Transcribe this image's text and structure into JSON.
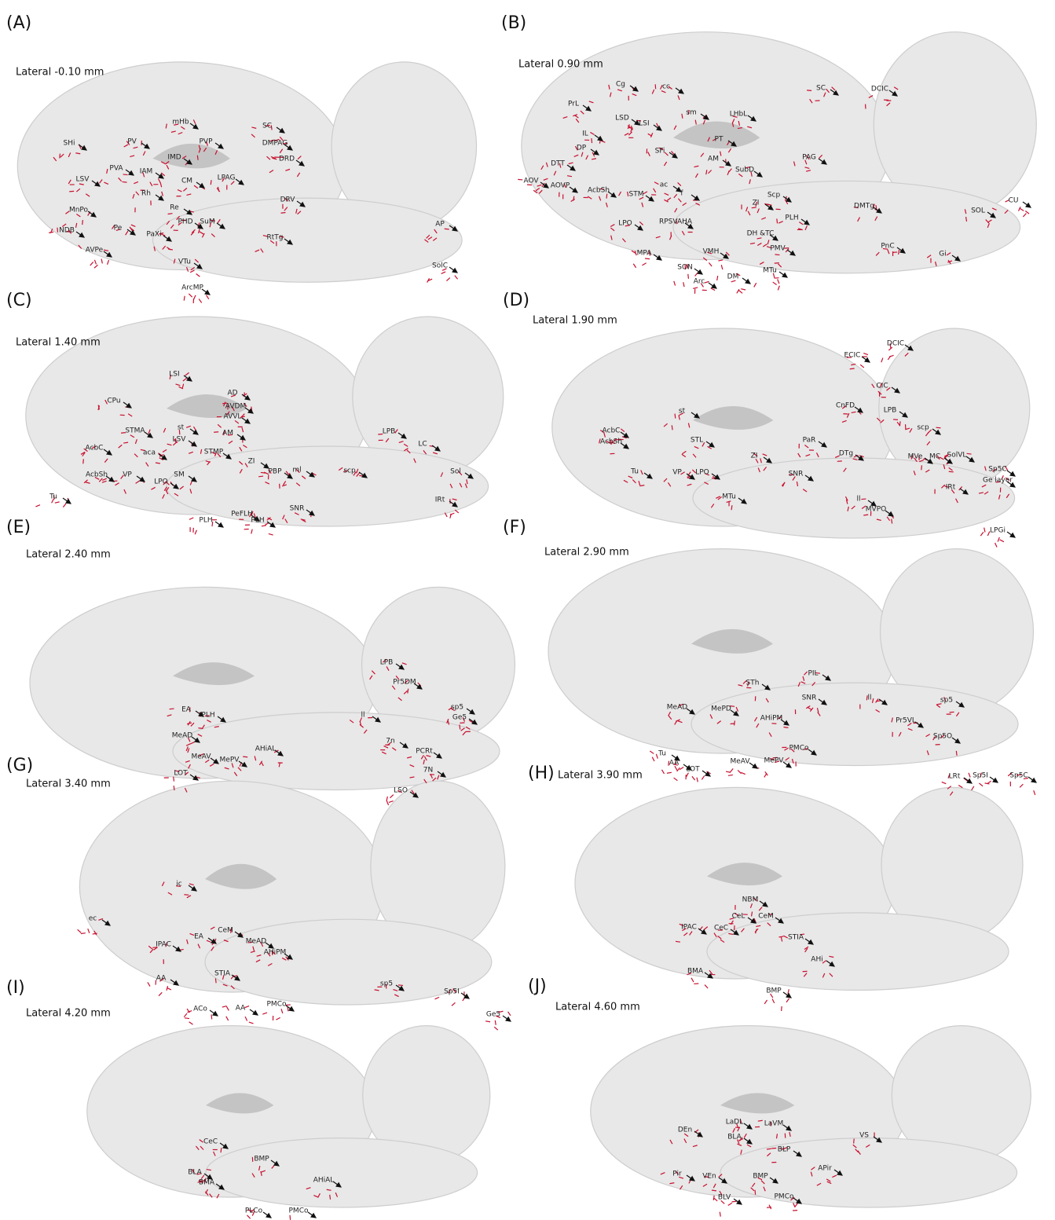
{
  "panels": [
    {
      "letter": "(A)",
      "section": "Lateral -0.10 mm",
      "labels": [
        "SHi",
        "PV",
        "mHb",
        "PVP",
        "IMD",
        "SC",
        "DMPAG",
        "PVA",
        "IAM",
        "CM",
        "LPAG",
        "DRD",
        "LSV",
        "Rh",
        "DRV",
        "Re",
        "MnPo",
        "Pe",
        "PHD",
        "SuM",
        "PaXi",
        "NDB",
        "AVPe",
        "RtTg",
        "AP",
        "SolC",
        "VTu",
        "ArcMP"
      ]
    },
    {
      "letter": "(B)",
      "section": "Lateral 0.90 mm",
      "labels": [
        "cc",
        "Cg",
        "PrL",
        "LSD",
        "sm",
        "LHbL",
        "SC",
        "DCIC",
        "LSI",
        "IL",
        "PT",
        "SFi",
        "DP",
        "AM",
        "PAG",
        "DTT",
        "SubD",
        "ac",
        "f",
        "AcbSh",
        "AOV",
        "AOVP",
        "STM",
        "Scp",
        "ZI",
        "DMTg",
        "SOL",
        "CU",
        "PLH",
        "LPO",
        "RPSVAHA",
        "DH &TC",
        "MPA",
        "PMV",
        "PnC",
        "Gi",
        "SON",
        "VMH",
        "MTu",
        "DM",
        "Arc"
      ]
    },
    {
      "letter": "(C)",
      "section": "Lateral 1.40 mm",
      "labels": [
        "LSI",
        "AD",
        "CPu",
        "AVDM",
        "AVVL",
        "st",
        "STMA",
        "LSV",
        "AM",
        "aca",
        "STMP",
        "AcbC",
        "ZI",
        "PBP",
        "ml",
        "scp",
        "LPB",
        "LC",
        "Sol",
        "VP",
        "LPO",
        "SM",
        "AcbSh",
        "IRt",
        "Tu",
        "PLH",
        "PeFLH",
        "PLH",
        "SNR"
      ]
    },
    {
      "letter": "(D)",
      "section": "Lateral 1.90 mm",
      "labels": [
        "DCIC",
        "ECIC",
        "CIC",
        "st",
        "CnFD",
        "LPB",
        "scp",
        "STL",
        "PaR",
        "ZI",
        "DTg",
        "AcbC",
        "AcbSh",
        "MVe",
        "MC",
        "SolVL",
        "Sp5C",
        "Ge layer",
        "Tu",
        "VP",
        "LPO",
        "SNR",
        "IRt",
        "MTu",
        "ll",
        "MVPO",
        "LPGi"
      ]
    },
    {
      "letter": "(E)",
      "section": "Lateral 2.40 mm",
      "labels": [
        "LPB",
        "Pr5DM",
        "sp5",
        "Ge5",
        "EA",
        "PLH",
        "ll",
        "MeAD",
        "AHiAL",
        "MeAV",
        "MePV",
        "7n",
        "PCRt",
        "7N",
        "LOT",
        "LSO"
      ]
    },
    {
      "letter": "(F)",
      "section": "Lateral 2.90 mm",
      "labels": [
        "STh",
        "PIL",
        "SNR",
        "ll",
        "sp5",
        "MeAD",
        "MePD",
        "AHiPM",
        "Pr5VL",
        "Sp5O",
        "Tu",
        "AA",
        "LOT",
        "MeAV",
        "MePV",
        "PMCo",
        "LRt",
        "Sp5I",
        "Sp5C"
      ]
    },
    {
      "letter": "(G)",
      "section": "Lateral 3.40 mm",
      "labels": [
        "ic",
        "ec",
        "IPAC",
        "EA",
        "CeM",
        "MeAD",
        "AHiPM",
        "AA",
        "STIA",
        "sp5",
        "ACo",
        "AA",
        "PMCo",
        "Sp5I",
        "Ge5"
      ]
    },
    {
      "letter": "(H)",
      "section": "Lateral 3.90 mm",
      "labels": [
        "NBM",
        "CeL",
        "CeM",
        "IPAC",
        "CeC",
        "STIA",
        "AHi",
        "BMA",
        "BMP"
      ]
    },
    {
      "letter": "(I)",
      "section": "Lateral 4.20 mm",
      "labels": [
        "CeC",
        "BMP",
        "BLA",
        "AHiAL",
        "BMA",
        "PLCo",
        "PMCo"
      ]
    },
    {
      "letter": "(J)",
      "section": "Lateral 4.60 mm",
      "labels": [
        "LaDL",
        "DEn",
        "LaVM",
        "BLA",
        "VS",
        "BLP",
        "Pir",
        "VEn",
        "BMP",
        "APir",
        "BLV",
        "PMCo"
      ]
    }
  ]
}
